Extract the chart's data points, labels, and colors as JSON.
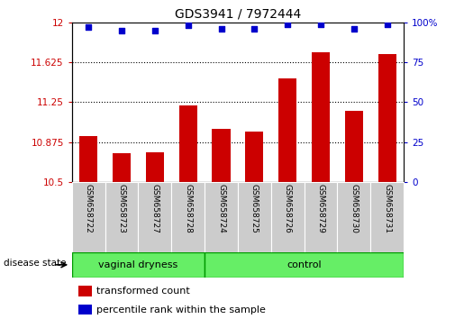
{
  "title": "GDS3941 / 7972444",
  "samples": [
    "GSM658722",
    "GSM658723",
    "GSM658727",
    "GSM658728",
    "GSM658724",
    "GSM658725",
    "GSM658726",
    "GSM658729",
    "GSM658730",
    "GSM658731"
  ],
  "bar_values": [
    10.93,
    10.77,
    10.78,
    11.22,
    11.0,
    10.97,
    11.47,
    11.72,
    11.17,
    11.7
  ],
  "dot_values": [
    97,
    95,
    95,
    98,
    96,
    96,
    99,
    99,
    96,
    99
  ],
  "bar_color": "#cc0000",
  "dot_color": "#0000cc",
  "ylim_left": [
    10.5,
    12.0
  ],
  "ylim_right": [
    0,
    100
  ],
  "yticks_left": [
    10.5,
    10.875,
    11.25,
    11.625,
    12.0
  ],
  "yticks_right": [
    0,
    25,
    50,
    75,
    100
  ],
  "ytick_labels_left": [
    "10.5",
    "10.875",
    "11.25",
    "11.625",
    "12"
  ],
  "ytick_labels_right": [
    "0",
    "25",
    "50",
    "75",
    "100%"
  ],
  "hlines": [
    10.875,
    11.25,
    11.625
  ],
  "group1_label": "vaginal dryness",
  "group2_label": "control",
  "group1_count": 4,
  "group2_count": 6,
  "group_bar_color": "#66ee66",
  "group_bar_border": "#009900",
  "tick_label_bg": "#cccccc",
  "legend_bar_label": "transformed count",
  "legend_dot_label": "percentile rank within the sample",
  "disease_state_label": "disease state",
  "bar_width": 0.55,
  "title_fontsize": 10,
  "tick_fontsize": 7.5,
  "sample_fontsize": 6.5,
  "legend_fontsize": 8
}
